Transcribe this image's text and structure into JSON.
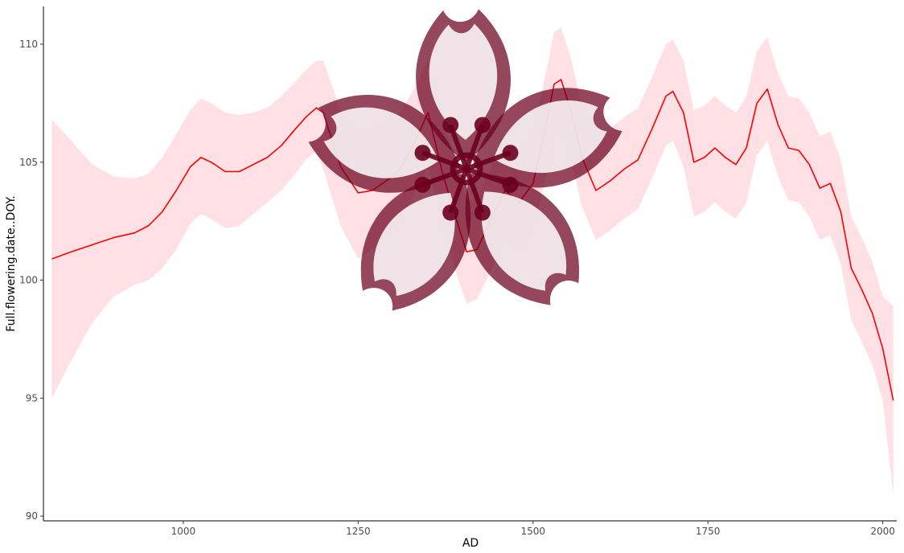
{
  "chart_data": {
    "type": "line",
    "xlabel": "AD",
    "ylabel": "Full.flowering.date..DOY.",
    "xlim": [
      800,
      2020
    ],
    "ylim": [
      89.8,
      111.6
    ],
    "x_ticks": [
      1000,
      1250,
      1500,
      1750,
      2000
    ],
    "y_ticks": [
      90,
      95,
      100,
      105,
      110
    ],
    "grid": false,
    "legend": "none",
    "series": [
      {
        "style": "line-with-ribbon",
        "color": "#ff0000",
        "ribbon_color": "#ffb6c1",
        "x": [
          812,
          840,
          870,
          900,
          930,
          950,
          970,
          990,
          1010,
          1025,
          1040,
          1060,
          1080,
          1100,
          1120,
          1140,
          1160,
          1175,
          1190,
          1200,
          1225,
          1250,
          1270,
          1290,
          1310,
          1330,
          1350,
          1370,
          1390,
          1405,
          1420,
          1440,
          1460,
          1480,
          1500,
          1520,
          1530,
          1540,
          1555,
          1570,
          1590,
          1610,
          1630,
          1650,
          1670,
          1690,
          1700,
          1715,
          1730,
          1745,
          1760,
          1775,
          1790,
          1805,
          1820,
          1835,
          1850,
          1865,
          1880,
          1895,
          1910,
          1925,
          1940,
          1955,
          1970,
          1985,
          2000,
          2015
        ],
        "y": [
          100.9,
          101.2,
          101.5,
          101.8,
          102.0,
          102.3,
          102.9,
          103.8,
          104.8,
          105.2,
          105.0,
          104.6,
          104.6,
          104.9,
          105.2,
          105.7,
          106.4,
          106.9,
          107.3,
          107.1,
          104.8,
          103.7,
          103.8,
          104.2,
          104.7,
          105.8,
          107.1,
          104.6,
          102.6,
          101.2,
          101.3,
          102.6,
          103.8,
          103.3,
          104.1,
          106.8,
          108.3,
          108.5,
          107.1,
          105.2,
          103.8,
          104.2,
          104.7,
          105.1,
          106.4,
          107.8,
          108.0,
          107.1,
          105.0,
          105.2,
          105.6,
          105.2,
          104.9,
          105.6,
          107.5,
          108.1,
          106.6,
          105.6,
          105.5,
          104.9,
          103.9,
          104.1,
          102.9,
          100.5,
          99.6,
          98.6,
          97.1,
          94.9
        ],
        "lower": [
          95.0,
          96.6,
          98.2,
          99.3,
          99.8,
          100.0,
          100.5,
          101.3,
          102.4,
          102.8,
          102.6,
          102.2,
          102.3,
          102.8,
          103.3,
          103.8,
          104.5,
          105.1,
          105.5,
          104.7,
          102.3,
          100.9,
          101.3,
          101.8,
          102.4,
          103.6,
          104.8,
          102.3,
          100.3,
          99.0,
          99.2,
          100.4,
          101.6,
          101.2,
          102.0,
          104.6,
          106.1,
          106.3,
          105.0,
          103.1,
          101.7,
          102.1,
          102.6,
          103.0,
          104.3,
          105.7,
          105.9,
          104.8,
          102.7,
          102.9,
          103.3,
          102.9,
          102.6,
          103.3,
          105.3,
          105.9,
          104.4,
          103.4,
          103.3,
          102.7,
          101.7,
          101.9,
          100.7,
          98.3,
          97.4,
          96.4,
          94.9,
          90.9
        ],
        "upper": [
          106.8,
          105.9,
          104.9,
          104.4,
          104.3,
          104.5,
          105.2,
          106.2,
          107.2,
          107.7,
          107.5,
          107.1,
          107.0,
          107.1,
          107.3,
          107.8,
          108.4,
          108.9,
          109.3,
          109.3,
          107.2,
          106.3,
          106.4,
          106.7,
          107.1,
          108.1,
          109.4,
          106.9,
          104.9,
          103.4,
          103.5,
          104.8,
          106.0,
          105.5,
          106.3,
          109.0,
          110.5,
          110.7,
          109.3,
          107.4,
          106.0,
          106.4,
          106.9,
          107.3,
          108.6,
          110.0,
          110.2,
          109.3,
          107.2,
          107.4,
          107.8,
          107.4,
          107.1,
          107.8,
          109.7,
          110.3,
          108.8,
          107.8,
          107.7,
          107.1,
          106.1,
          106.3,
          105.1,
          102.7,
          101.8,
          100.8,
          99.3,
          98.9
        ]
      }
    ]
  },
  "logo": {
    "name": "sakura-flower-emblem",
    "color": "#6b001e",
    "opacity": 0.72
  }
}
